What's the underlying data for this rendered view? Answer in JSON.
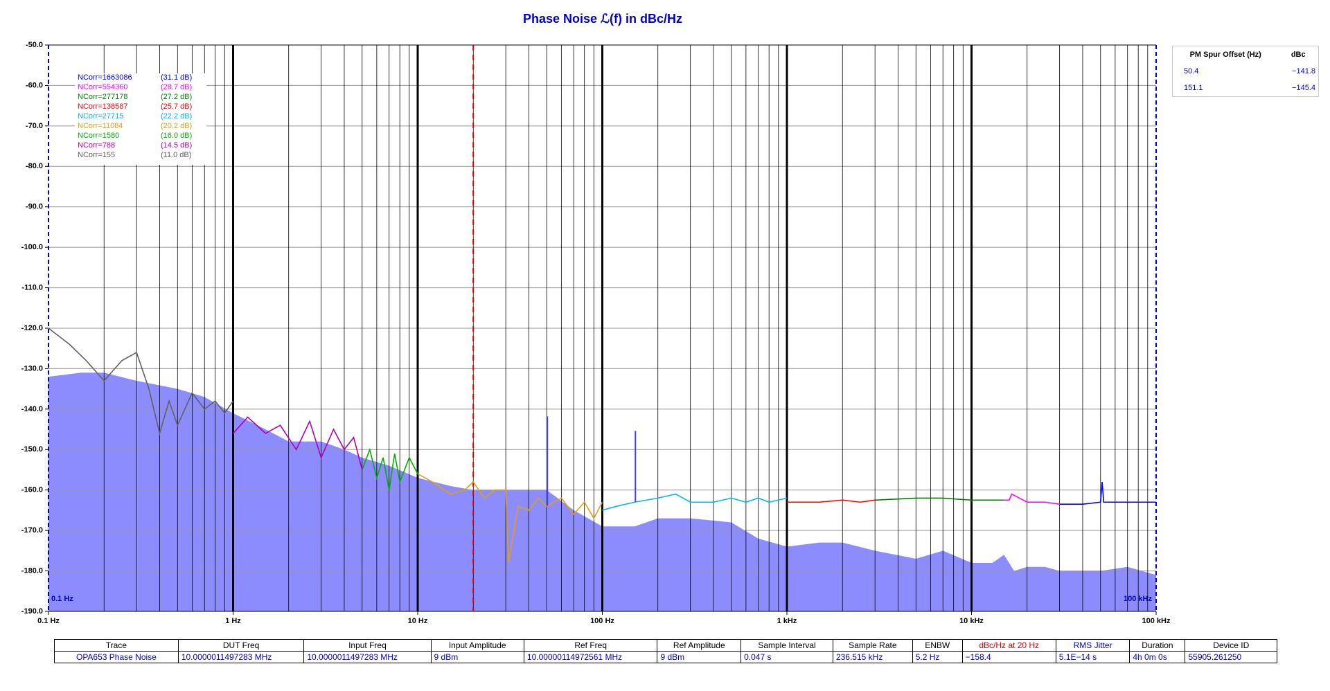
{
  "chart_data": {
    "type": "line",
    "title": "Phase Noise ℒ(f) in dBc/Hz",
    "xscale": "log",
    "xlim": [
      0.1,
      100000
    ],
    "xticks": [
      {
        "value": 0.1,
        "label": "0.1 Hz"
      },
      {
        "value": 1,
        "label": "1 Hz"
      },
      {
        "value": 10,
        "label": "10 Hz"
      },
      {
        "value": 100,
        "label": "100 Hz"
      },
      {
        "value": 1000,
        "label": "1 kHz"
      },
      {
        "value": 10000,
        "label": "10 kHz"
      },
      {
        "value": 100000,
        "label": "100 kHz"
      }
    ],
    "ylim": [
      -190,
      -50
    ],
    "yticks": [
      {
        "value": -50,
        "label": "-50.0"
      },
      {
        "value": -60,
        "label": "-60.0"
      },
      {
        "value": -70,
        "label": "-70.0"
      },
      {
        "value": -80,
        "label": "-80.0"
      },
      {
        "value": -90,
        "label": "-90.0"
      },
      {
        "value": -100,
        "label": "-100.0"
      },
      {
        "value": -110,
        "label": "-110.0"
      },
      {
        "value": -120,
        "label": "-120.0"
      },
      {
        "value": -130,
        "label": "-130.0"
      },
      {
        "value": -140,
        "label": "-140.0"
      },
      {
        "value": -150,
        "label": "-150.0"
      },
      {
        "value": -160,
        "label": "-160.0"
      },
      {
        "value": -170,
        "label": "-170.0"
      },
      {
        "value": -180,
        "label": "-180.0"
      },
      {
        "value": -190,
        "label": "-190.0"
      }
    ],
    "grid": true,
    "range_labels": [
      "0.1 Hz",
      "100 kHz"
    ],
    "marker_x": 20,
    "marker_color": "#e00000",
    "floor": {
      "color": "#8c8cff",
      "x": [
        0.1,
        0.15,
        0.2,
        0.3,
        0.5,
        0.7,
        1,
        1.5,
        2,
        3,
        4,
        5,
        7,
        10,
        15,
        20,
        30,
        50,
        70,
        100,
        150,
        200,
        300,
        500,
        700,
        1000,
        1500,
        2000,
        3000,
        5000,
        7000,
        10000,
        13000,
        15000,
        17000,
        20000,
        25000,
        30000,
        50000,
        70000,
        100000
      ],
      "values": [
        -132,
        -131,
        -131,
        -133,
        -135,
        -137,
        -141,
        -145,
        -148,
        -148,
        -150,
        -152,
        -154,
        -157,
        -159,
        -160,
        -160,
        -160,
        -165,
        -169,
        -169,
        -167,
        -167,
        -168,
        -172,
        -174,
        -173,
        -173,
        -175,
        -177,
        -175,
        -178,
        -178,
        -176,
        -180,
        -179,
        -179,
        -180,
        -180,
        -179,
        -181
      ]
    },
    "series": [
      {
        "name": "NCorr=1663086",
        "note": "(31.1 dB)",
        "color": "#0000ff",
        "x": [
          30000,
          40000,
          50000,
          51000,
          52000,
          70000,
          100000
        ],
        "values": [
          -163.5,
          -163.5,
          -163,
          -158,
          -163,
          -163,
          -163
        ]
      },
      {
        "name": "NCorr=554360",
        "note": "(28.7 dB)",
        "color": "#ff00ff",
        "x": [
          15000,
          16000,
          16500,
          20000,
          25000,
          30000
        ],
        "values": [
          -162.5,
          -162.5,
          -161,
          -163,
          -163,
          -163.5
        ]
      },
      {
        "name": "NCorr=277178",
        "note": "(27.2 dB)",
        "color": "#008000",
        "x": [
          3000,
          5000,
          7000,
          10000,
          15000
        ],
        "values": [
          -162.5,
          -162,
          -162,
          -162.5,
          -162.5
        ]
      },
      {
        "name": "NCorr=138587",
        "note": "(25.7 dB)",
        "color": "#ff0000",
        "x": [
          1000,
          1500,
          2000,
          2500,
          3000
        ],
        "values": [
          -163,
          -163,
          -162.5,
          -163,
          -162.5
        ]
      },
      {
        "name": "NCorr=27715",
        "note": "(22.2 dB)",
        "color": "#00b8f0",
        "x": [
          100,
          120,
          150,
          200,
          250,
          300,
          400,
          500,
          600,
          700,
          800,
          1000
        ],
        "values": [
          -165,
          -164,
          -163,
          -162,
          -161,
          -163,
          -163,
          -162,
          -163,
          -162,
          -163,
          -162
        ]
      },
      {
        "name": "NCorr=11084",
        "note": "(20.2 dB)",
        "color": "#e0a010",
        "x": [
          10,
          12,
          15,
          18,
          20,
          23,
          26,
          30,
          31,
          35,
          40,
          45,
          50,
          60,
          70,
          80,
          90,
          100
        ],
        "values": [
          -156,
          -158,
          -161,
          -160,
          -158,
          -162,
          -160,
          -160,
          -178,
          -164,
          -165,
          -162,
          -164,
          -162,
          -166,
          -163,
          -167,
          -163
        ]
      },
      {
        "name": "NCorr=1580",
        "note": "(16.0 dB)",
        "color": "#00b000",
        "x": [
          5,
          5.5,
          6,
          6.5,
          7,
          7.5,
          8,
          9,
          10
        ],
        "values": [
          -155,
          -150,
          -157,
          -152,
          -160,
          -151,
          -158,
          -152,
          -156
        ]
      },
      {
        "name": "NCorr=788",
        "note": "(14.5 dB)",
        "color": "#b000b0",
        "x": [
          1,
          1.2,
          1.5,
          1.8,
          2.2,
          2.6,
          3,
          3.5,
          4,
          4.5,
          5
        ],
        "values": [
          -146,
          -142,
          -146,
          -144,
          -150,
          -143,
          -152,
          -145,
          -150,
          -147,
          -155
        ]
      },
      {
        "name": "NCorr=155",
        "note": "(11.0 dB)",
        "color": "#606060",
        "x": [
          0.1,
          0.13,
          0.16,
          0.2,
          0.25,
          0.3,
          0.35,
          0.4,
          0.45,
          0.5,
          0.6,
          0.7,
          0.8,
          0.9,
          1.0
        ],
        "values": [
          -120,
          -124,
          -128,
          -133,
          -128,
          -126,
          -135,
          -146,
          -138,
          -144,
          -136,
          -140,
          -138,
          -141,
          -138
        ]
      }
    ],
    "spur_table": {
      "headers": [
        "PM Spur Offset (Hz)",
        "dBc"
      ],
      "rows": [
        {
          "offset": 50.4,
          "level": {
            "value": -141.8,
            "label": "−141.8"
          }
        },
        {
          "offset": 151.1,
          "level": {
            "value": -145.4,
            "label": "−145.4"
          }
        }
      ]
    },
    "info_table": {
      "headers": [
        "Trace",
        "DUT Freq",
        "Input Freq",
        "Input Amplitude",
        "Ref Freq",
        "Ref Amplitude",
        "Sample Interval",
        "Sample Rate",
        "ENBW",
        "dBc/Hz at 20 Hz",
        "RMS Jitter",
        "Duration",
        "Device ID"
      ],
      "row": [
        "OPA653 Phase Noise",
        "10.0000011497283 MHz",
        "10.0000011497283 MHz",
        "9 dBm",
        "10.00000114972561 MHz",
        "9 dBm",
        "0.047 s",
        "236.515 kHz",
        "5.2 Hz",
        "−158.4",
        "5.1E−14 s",
        "4h 0m 0s",
        "55905.261250"
      ]
    }
  }
}
